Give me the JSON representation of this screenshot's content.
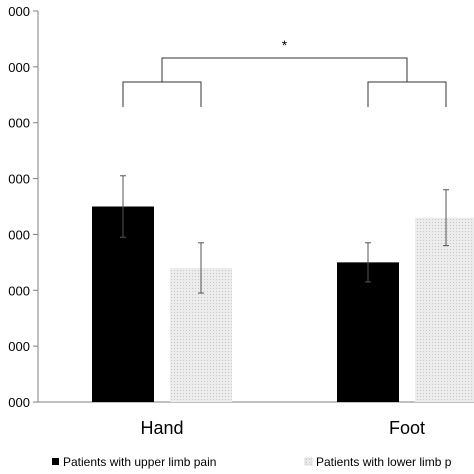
{
  "chart_data": {
    "type": "bar",
    "categories": [
      "Hand",
      "Foot"
    ],
    "series": [
      {
        "name": "Patients with upper limb pain",
        "values": [
          4.5,
          3.5
        ],
        "errors": [
          0.55,
          0.35
        ],
        "color": "#000000"
      },
      {
        "name": "Patients with lower limb p",
        "values": [
          3.4,
          4.3
        ],
        "errors": [
          0.45,
          0.5
        ],
        "color": "#e6e6e6"
      }
    ],
    "ylim": [
      1,
      8
    ],
    "yticks": [
      "000",
      "000",
      "000",
      "000",
      "000",
      "000",
      "000",
      "000"
    ],
    "significance": {
      "label": "*"
    },
    "legend_placement": "bottom",
    "grid": false
  }
}
